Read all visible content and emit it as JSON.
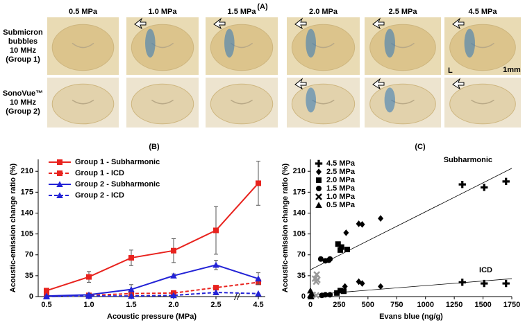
{
  "panel_a": {
    "title": "(A)",
    "columns": [
      "0.5 MPa",
      "1.0 MPa",
      "1.5 MPa",
      "2.0 MPa",
      "2.5 MPa",
      "4.5 MPa"
    ],
    "rows": [
      {
        "lines": [
          "Submicron",
          "bubbles",
          "10 MHz",
          "(Group 1)"
        ]
      },
      {
        "lines": [
          "SonoVue™",
          "10 MHz",
          "(Group 2)"
        ]
      }
    ],
    "orientation_label": "L",
    "scale_label": "1mm"
  },
  "chart_data": [
    {
      "type": "line",
      "title": "(B)",
      "x_label": "Acoustic pressure (MPa)",
      "y_label": "Acoustic-emission change ratio (%)",
      "categories": [
        "0.5",
        "1.0",
        "1.5",
        "2.0",
        "2.5",
        "4.5"
      ],
      "ylim": [
        0,
        230
      ],
      "yticks": [
        0,
        35,
        70,
        105,
        140,
        175,
        210
      ],
      "legend": "upper-left",
      "series": [
        {
          "name": "Group 1 - Subharmonic",
          "color": "#e8231e",
          "dash": false,
          "marker": "square",
          "values": [
            10,
            33,
            65,
            77,
            111,
            190
          ],
          "errors": [
            3,
            9,
            13,
            20,
            40,
            37
          ]
        },
        {
          "name": "Group 1 - ICD",
          "color": "#e8231e",
          "dash": true,
          "marker": "square",
          "values": [
            1,
            2,
            5,
            6,
            15,
            24
          ]
        },
        {
          "name": "Group 2 - Subharmonic",
          "color": "#2323d6",
          "dash": false,
          "marker": "triangle",
          "values": [
            1,
            3,
            12,
            35,
            53,
            30
          ],
          "errors": [
            1,
            2,
            8,
            3,
            8,
            10
          ]
        },
        {
          "name": "Group 2 - ICD",
          "color": "#2323d6",
          "dash": true,
          "marker": "triangle",
          "values": [
            0,
            1,
            1,
            2,
            7,
            5
          ]
        }
      ]
    },
    {
      "type": "scatter",
      "title": "(C)",
      "x_label": "Evans blue (ng/g)",
      "y_label": "Acoustic-emission change ratio (%)",
      "xlim": [
        0,
        1750
      ],
      "xticks": [
        0,
        250,
        500,
        750,
        1000,
        1250,
        1500,
        1750
      ],
      "ylim": [
        0,
        230
      ],
      "yticks": [
        0,
        35,
        70,
        105,
        140,
        175,
        210
      ],
      "legend": "upper-left",
      "series": [
        {
          "name": "4.5 MPa",
          "color": "#000000",
          "marker": "plus",
          "x": [
            1320,
            1510,
            1700,
            1320,
            1510,
            1700
          ],
          "values": [
            188,
            183,
            193,
            24,
            22,
            22
          ]
        },
        {
          "name": "2.5 MPa",
          "color": "#000000",
          "marker": "diamond",
          "x": [
            310,
            420,
            450,
            610,
            300,
            420,
            450,
            610
          ],
          "values": [
            107,
            122,
            121,
            131,
            17,
            25,
            22,
            17
          ]
        },
        {
          "name": "2.0 MPa",
          "color": "#000000",
          "marker": "square",
          "x": [
            240,
            260,
            320,
            270,
            230,
            260,
            290
          ],
          "values": [
            88,
            78,
            79,
            83,
            6,
            10,
            9
          ]
        },
        {
          "name": "1.5 MPa",
          "color": "#000000",
          "marker": "circle",
          "x": [
            90,
            130,
            160,
            170,
            100,
            130,
            170
          ],
          "values": [
            63,
            60,
            61,
            63,
            2,
            3,
            3
          ]
        },
        {
          "name": "1.0 MPa",
          "color": "#999999",
          "marker": "cross",
          "x": [
            40,
            50,
            55,
            60,
            20,
            50
          ],
          "values": [
            30,
            25,
            37,
            28,
            3,
            2
          ]
        },
        {
          "name": "0.5 MPa",
          "color": "#000000",
          "marker": "triangle",
          "x": [
            0,
            10,
            0,
            5
          ],
          "values": [
            10,
            5,
            2,
            0
          ]
        }
      ],
      "trendlines": [
        {
          "name": "Subharmonic",
          "x": [
            0,
            1750
          ],
          "values": [
            45,
            215
          ]
        },
        {
          "name": "ICD",
          "x": [
            0,
            1750
          ],
          "values": [
            3,
            30
          ]
        }
      ]
    }
  ]
}
